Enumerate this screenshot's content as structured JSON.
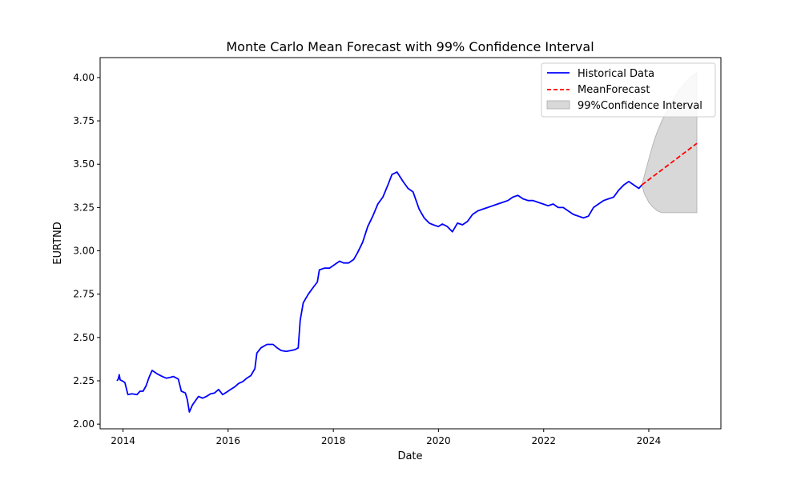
{
  "chart_data": {
    "type": "line",
    "title": "Monte Carlo Mean Forecast with 99% Confidence Interval",
    "xlabel": "Date",
    "ylabel": "EURTND",
    "xlim": [
      "2013-07-26",
      "2025-05-16"
    ],
    "ylim": [
      1.973,
      4.115
    ],
    "x_ticks": [
      "2014",
      "2016",
      "2018",
      "2020",
      "2022",
      "2024"
    ],
    "y_ticks": [
      "2.00",
      "2.25",
      "2.50",
      "2.75",
      "3.00",
      "3.25",
      "3.50",
      "3.75",
      "4.00"
    ],
    "grid": false,
    "legend": "top-right",
    "series": [
      {
        "name": "Historical Data",
        "kind": "line",
        "color": "#0000ff",
        "points": [
          [
            "2013-11-20",
            2.25
          ],
          [
            "2013-11-29",
            2.26
          ],
          [
            "2013-12-06",
            2.285
          ],
          [
            "2013-12-12",
            2.255
          ],
          [
            "2013-12-26",
            2.25
          ],
          [
            "2014-01-14",
            2.24
          ],
          [
            "2014-02-04",
            2.17
          ],
          [
            "2014-03-04",
            2.175
          ],
          [
            "2014-04-08",
            2.17
          ],
          [
            "2014-04-29",
            2.19
          ],
          [
            "2014-05-20",
            2.19
          ],
          [
            "2014-06-10",
            2.22
          ],
          [
            "2014-07-01",
            2.27
          ],
          [
            "2014-07-22",
            2.31
          ],
          [
            "2014-08-26",
            2.29
          ],
          [
            "2014-09-30",
            2.275
          ],
          [
            "2014-10-28",
            2.265
          ],
          [
            "2014-11-25",
            2.27
          ],
          [
            "2014-12-16",
            2.275
          ],
          [
            "2015-01-20",
            2.26
          ],
          [
            "2015-02-10",
            2.19
          ],
          [
            "2015-03-10",
            2.18
          ],
          [
            "2015-03-24",
            2.14
          ],
          [
            "2015-04-07",
            2.07
          ],
          [
            "2015-04-28",
            2.11
          ],
          [
            "2015-05-19",
            2.135
          ],
          [
            "2015-06-09",
            2.16
          ],
          [
            "2015-07-07",
            2.15
          ],
          [
            "2015-08-04",
            2.16
          ],
          [
            "2015-09-01",
            2.175
          ],
          [
            "2015-09-29",
            2.18
          ],
          [
            "2015-10-27",
            2.2
          ],
          [
            "2015-11-24",
            2.17
          ],
          [
            "2015-12-22",
            2.185
          ],
          [
            "2016-01-19",
            2.2
          ],
          [
            "2016-02-16",
            2.215
          ],
          [
            "2016-03-15",
            2.235
          ],
          [
            "2016-04-12",
            2.245
          ],
          [
            "2016-05-10",
            2.265
          ],
          [
            "2016-06-07",
            2.28
          ],
          [
            "2016-07-05",
            2.32
          ],
          [
            "2016-07-19",
            2.41
          ],
          [
            "2016-08-16",
            2.44
          ],
          [
            "2016-09-27",
            2.46
          ],
          [
            "2016-11-08",
            2.46
          ],
          [
            "2016-12-06",
            2.44
          ],
          [
            "2017-01-03",
            2.425
          ],
          [
            "2017-02-07",
            2.42
          ],
          [
            "2017-03-14",
            2.425
          ],
          [
            "2017-04-11",
            2.43
          ],
          [
            "2017-05-02",
            2.44
          ],
          [
            "2017-05-16",
            2.6
          ],
          [
            "2017-06-06",
            2.7
          ],
          [
            "2017-07-11",
            2.75
          ],
          [
            "2017-08-15",
            2.79
          ],
          [
            "2017-09-12",
            2.82
          ],
          [
            "2017-09-26",
            2.89
          ],
          [
            "2017-10-31",
            2.9
          ],
          [
            "2017-12-05",
            2.9
          ],
          [
            "2018-01-09",
            2.92
          ],
          [
            "2018-02-13",
            2.94
          ],
          [
            "2018-03-13",
            2.93
          ],
          [
            "2018-04-17",
            2.93
          ],
          [
            "2018-05-22",
            2.95
          ],
          [
            "2018-06-19",
            2.99
          ],
          [
            "2018-07-24",
            3.05
          ],
          [
            "2018-08-28",
            3.14
          ],
          [
            "2018-10-02",
            3.2
          ],
          [
            "2018-11-06",
            3.27
          ],
          [
            "2018-12-11",
            3.31
          ],
          [
            "2019-01-15",
            3.38
          ],
          [
            "2019-02-12",
            3.44
          ],
          [
            "2019-03-19",
            3.455
          ],
          [
            "2019-04-30",
            3.4
          ],
          [
            "2019-06-04",
            3.36
          ],
          [
            "2019-07-09",
            3.34
          ],
          [
            "2019-08-20",
            3.24
          ],
          [
            "2019-09-24",
            3.19
          ],
          [
            "2019-10-29",
            3.16
          ],
          [
            "2019-11-26",
            3.15
          ],
          [
            "2019-12-31",
            3.14
          ],
          [
            "2020-01-28",
            3.155
          ],
          [
            "2020-03-03",
            3.14
          ],
          [
            "2020-04-07",
            3.11
          ],
          [
            "2020-05-12",
            3.16
          ],
          [
            "2020-06-16",
            3.15
          ],
          [
            "2020-07-21",
            3.17
          ],
          [
            "2020-08-25",
            3.21
          ],
          [
            "2020-09-29",
            3.23
          ],
          [
            "2020-11-03",
            3.24
          ],
          [
            "2020-12-08",
            3.25
          ],
          [
            "2021-01-12",
            3.26
          ],
          [
            "2021-02-16",
            3.27
          ],
          [
            "2021-03-23",
            3.28
          ],
          [
            "2021-04-27",
            3.29
          ],
          [
            "2021-06-01",
            3.31
          ],
          [
            "2021-07-06",
            3.32
          ],
          [
            "2021-08-10",
            3.3
          ],
          [
            "2021-09-14",
            3.29
          ],
          [
            "2021-10-19",
            3.29
          ],
          [
            "2021-11-23",
            3.28
          ],
          [
            "2021-12-28",
            3.27
          ],
          [
            "2022-02-01",
            3.26
          ],
          [
            "2022-03-08",
            3.27
          ],
          [
            "2022-04-12",
            3.25
          ],
          [
            "2022-05-17",
            3.25
          ],
          [
            "2022-06-21",
            3.23
          ],
          [
            "2022-07-26",
            3.21
          ],
          [
            "2022-08-30",
            3.2
          ],
          [
            "2022-10-04",
            3.19
          ],
          [
            "2022-11-08",
            3.2
          ],
          [
            "2022-12-13",
            3.25
          ],
          [
            "2023-01-17",
            3.27
          ],
          [
            "2023-02-21",
            3.29
          ],
          [
            "2023-03-28",
            3.3
          ],
          [
            "2023-05-02",
            3.31
          ],
          [
            "2023-06-06",
            3.35
          ],
          [
            "2023-07-11",
            3.38
          ],
          [
            "2023-08-15",
            3.4
          ],
          [
            "2023-09-19",
            3.38
          ],
          [
            "2023-10-24",
            3.36
          ],
          [
            "2023-11-14",
            3.38
          ]
        ]
      },
      {
        "name": "MeanForecast",
        "kind": "dashed-line",
        "color": "#ff0000",
        "points": [
          [
            "2023-11-14",
            3.38
          ],
          [
            "2024-11-30",
            3.62
          ]
        ]
      },
      {
        "name": "99%Confidence Interval",
        "kind": "band",
        "color": "#d8d8d8",
        "edge_color": "#aaaaaa",
        "upper": [
          [
            "2023-11-14",
            3.38
          ],
          [
            "2024-01-01",
            3.53
          ],
          [
            "2024-02-01",
            3.62
          ],
          [
            "2024-03-01",
            3.69
          ],
          [
            "2024-04-01",
            3.75
          ],
          [
            "2024-05-01",
            3.8
          ],
          [
            "2024-06-01",
            3.85
          ],
          [
            "2024-07-01",
            3.89
          ],
          [
            "2024-08-01",
            3.93
          ],
          [
            "2024-09-01",
            3.96
          ],
          [
            "2024-10-01",
            3.99
          ],
          [
            "2024-11-30",
            4.03
          ]
        ],
        "lower": [
          [
            "2023-11-14",
            3.38
          ],
          [
            "2023-12-01",
            3.33
          ],
          [
            "2024-01-01",
            3.28
          ],
          [
            "2024-02-01",
            3.25
          ],
          [
            "2024-03-01",
            3.23
          ],
          [
            "2024-04-01",
            3.22
          ],
          [
            "2024-06-01",
            3.22
          ],
          [
            "2024-08-01",
            3.22
          ],
          [
            "2024-10-01",
            3.22
          ],
          [
            "2024-11-30",
            3.22
          ]
        ]
      }
    ]
  }
}
